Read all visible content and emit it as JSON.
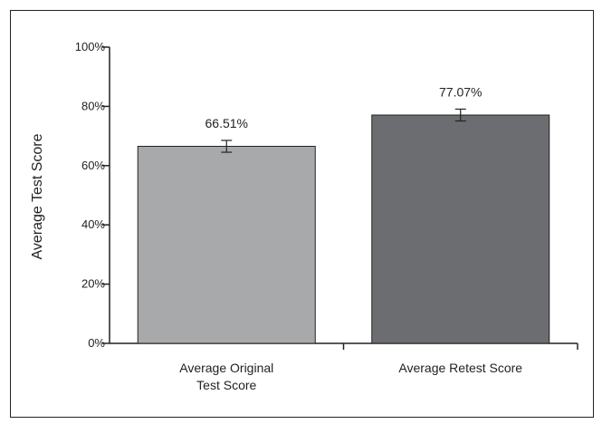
{
  "chart_data": {
    "type": "bar",
    "categories": [
      "Average Original\nTest Score",
      "Average Retest Score"
    ],
    "values": [
      66.51,
      77.07
    ],
    "error": [
      2,
      2
    ],
    "data_labels": [
      "66.51%",
      "77.07%"
    ],
    "ylabel": "Average Test Score",
    "ylim": [
      0,
      100
    ],
    "yticks": [
      0,
      20,
      40,
      60,
      80,
      100
    ],
    "ytick_labels": [
      "0%",
      "20%",
      "40%",
      "60%",
      "80%",
      "100%"
    ],
    "grid": false,
    "colors": [
      "#a8a9ab",
      "#6c6d70"
    ]
  }
}
